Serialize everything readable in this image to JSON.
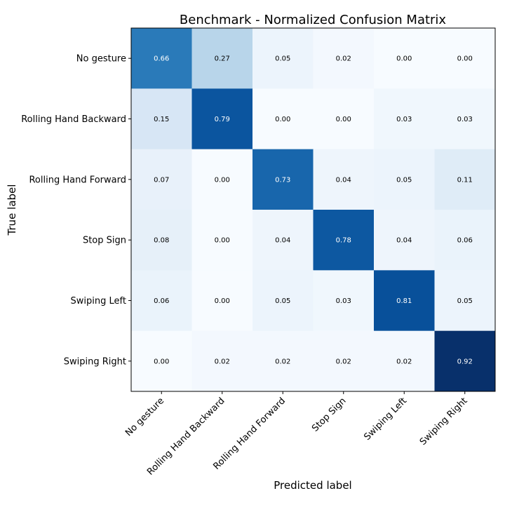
{
  "chart_data": {
    "type": "heatmap",
    "title": "Benchmark - Normalized Confusion Matrix",
    "xlabel": "Predicted label",
    "ylabel": "True label",
    "row_labels": [
      "No gesture",
      "Rolling Hand Backward",
      "Rolling Hand Forward",
      "Stop Sign",
      "Swiping Left",
      "Swiping Right"
    ],
    "col_labels": [
      "No gesture",
      "Rolling Hand Backward",
      "Rolling Hand Forward",
      "Stop Sign",
      "Swiping Left",
      "Swiping Right"
    ],
    "values": [
      [
        0.66,
        0.27,
        0.05,
        0.02,
        0.0,
        0.0
      ],
      [
        0.15,
        0.79,
        0.0,
        0.0,
        0.03,
        0.03
      ],
      [
        0.07,
        0.0,
        0.73,
        0.04,
        0.05,
        0.11
      ],
      [
        0.08,
        0.0,
        0.04,
        0.78,
        0.04,
        0.06
      ],
      [
        0.06,
        0.0,
        0.05,
        0.03,
        0.81,
        0.05
      ],
      [
        0.0,
        0.02,
        0.02,
        0.02,
        0.02,
        0.92
      ]
    ],
    "value_format": "2 decimals",
    "colormap": "Blues",
    "value_range": [
      0,
      0.92
    ],
    "grid": false
  }
}
